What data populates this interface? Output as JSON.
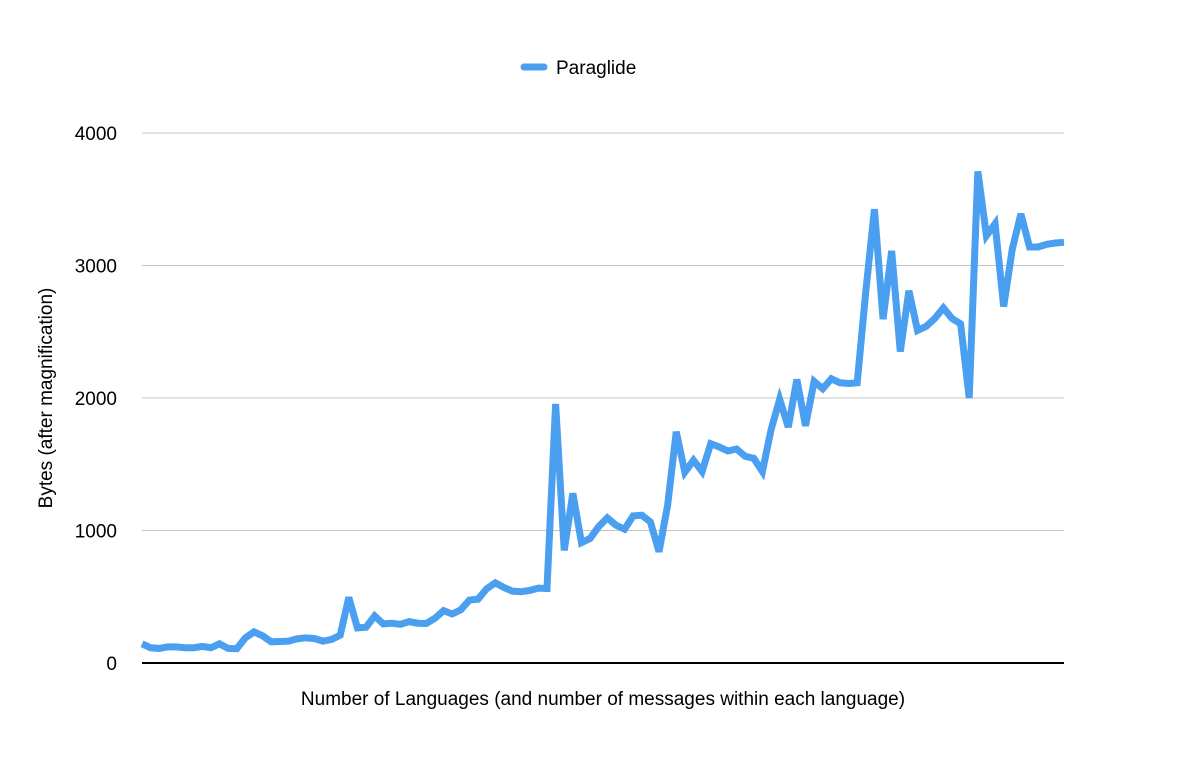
{
  "chart_data": {
    "type": "line",
    "xlabel": "Number of Languages (and number of messages within each language)",
    "ylabel": "Bytes (after magnification)",
    "ylim": [
      0,
      4000
    ],
    "yticks": [
      "0",
      "1000",
      "2000",
      "3000",
      "4000"
    ],
    "grid": true,
    "legend_position": "top-center",
    "series": [
      {
        "name": "Paraglide",
        "color": "#4a9ff0",
        "values": [
          145,
          115,
          110,
          122,
          122,
          115,
          115,
          125,
          115,
          145,
          110,
          108,
          190,
          235,
          205,
          160,
          162,
          165,
          182,
          190,
          185,
          165,
          178,
          210,
          495,
          265,
          270,
          355,
          295,
          300,
          292,
          312,
          300,
          298,
          338,
          395,
          370,
          402,
          475,
          482,
          560,
          605,
          570,
          542,
          538,
          548,
          565,
          562,
          1955,
          850,
          1280,
          908,
          940,
          1030,
          1095,
          1040,
          1010,
          1110,
          1115,
          1065,
          840,
          1190,
          1745,
          1440,
          1530,
          1445,
          1655,
          1630,
          1600,
          1615,
          1560,
          1545,
          1445,
          1760,
          1990,
          1780,
          2140,
          1790,
          2125,
          2070,
          2145,
          2115,
          2110,
          2115,
          2805,
          3425,
          2595,
          3110,
          2350,
          2810,
          2510,
          2540,
          2600,
          2680,
          2600,
          2560,
          2000,
          3710,
          3225,
          3315,
          2690,
          3125,
          3390,
          3140,
          3140,
          3160,
          3170,
          3175
        ]
      }
    ]
  }
}
